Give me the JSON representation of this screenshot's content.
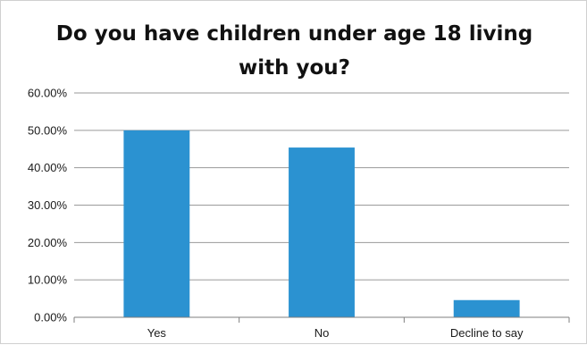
{
  "chart_data": {
    "type": "bar",
    "title": "Do you have children under age 18 living with you?",
    "categories": [
      "Yes",
      "No",
      "Decline to say"
    ],
    "values": [
      50.0,
      45.4,
      4.6
    ],
    "ylim": [
      0,
      60
    ],
    "yticks": [
      0,
      10,
      20,
      30,
      40,
      50,
      60
    ],
    "ytick_labels": [
      "0.00%",
      "10.00%",
      "20.00%",
      "30.00%",
      "40.00%",
      "50.00%",
      "60.00%"
    ],
    "xlabel": "",
    "ylabel": "",
    "grid": true,
    "legend": "none",
    "colors": {
      "bar": "#2b92d1",
      "grid": "#9a9a9a",
      "axis": "#7f7f7f"
    }
  }
}
